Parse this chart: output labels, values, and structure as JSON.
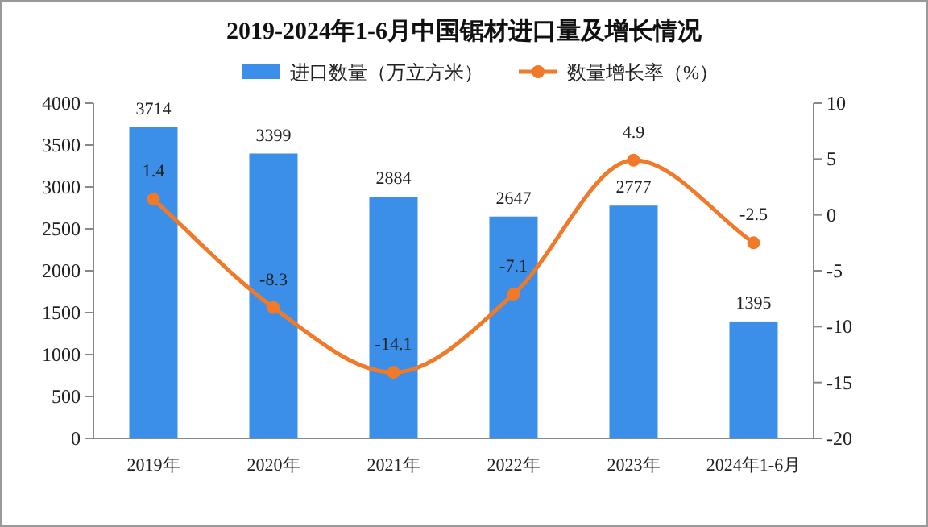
{
  "chart_data": {
    "type": "bar",
    "title": "2019-2024年1-6月中国锯材进口量及增长情况",
    "categories": [
      "2019年",
      "2020年",
      "2021年",
      "2022年",
      "2023年",
      "2024年1-6月"
    ],
    "series": [
      {
        "name": "进口数量（万立方米）",
        "color": "#3b8fe8",
        "values": [
          3714,
          3399,
          2884,
          2647,
          2777,
          1395
        ]
      },
      {
        "name": "数量增长率（%）",
        "type": "line",
        "axis": "y2",
        "color": "#f07a2a",
        "marker": "circle",
        "values": [
          1.4,
          -8.3,
          -14.1,
          -7.1,
          4.9,
          -2.5
        ]
      }
    ],
    "ylim": [
      0,
      4000
    ],
    "yticks": [
      0,
      500,
      1000,
      1500,
      2000,
      2500,
      3000,
      3500,
      4000
    ],
    "y2lim": [
      -20,
      10
    ],
    "y2ticks": [
      -20,
      -15,
      -10,
      -5,
      0,
      5,
      10
    ],
    "data_labels": true,
    "legend": "top",
    "grid": false
  }
}
